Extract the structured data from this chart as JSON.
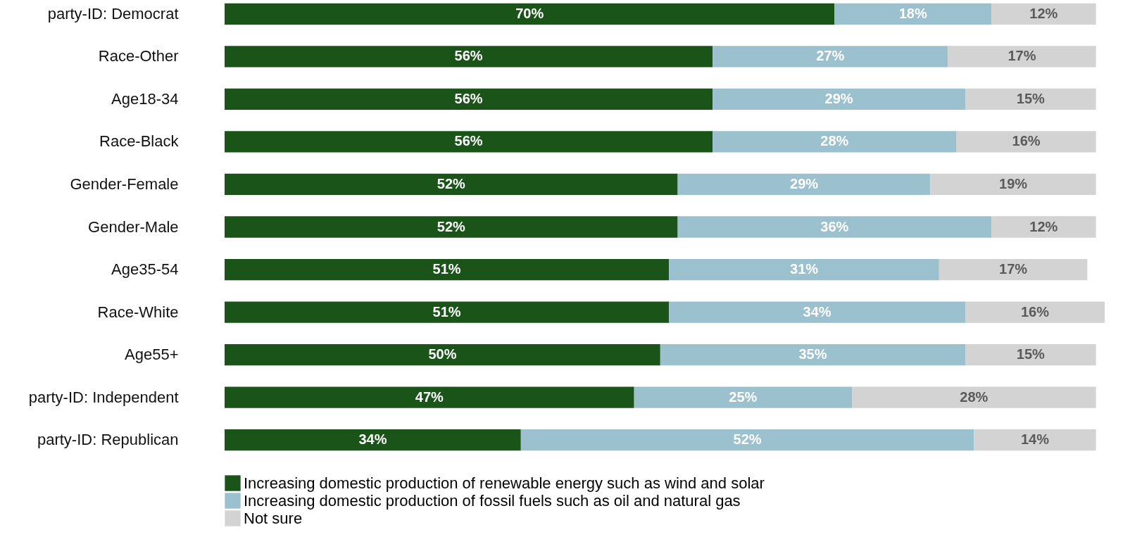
{
  "chart_data": {
    "type": "bar",
    "orientation": "horizontal",
    "stacked": true,
    "legend": "bottom",
    "categories": [
      "party-ID: Democrat",
      "Race-Other",
      "Age18-34",
      "Race-Black",
      "Gender-Female",
      "Gender-Male",
      "Age35-54",
      "Race-White",
      "Age55+",
      "party-ID: Independent",
      "party-ID: Republican"
    ],
    "series": [
      {
        "name": "Increasing domestic production of renewable energy such as wind and solar",
        "color": "#1a5418",
        "values": [
          70,
          56,
          56,
          56,
          52,
          52,
          51,
          51,
          50,
          47,
          34
        ],
        "value_labels": [
          "70%",
          "56%",
          "56%",
          "56%",
          "52%",
          "52%",
          "51%",
          "51%",
          "50%",
          "47%",
          "34%"
        ]
      },
      {
        "name": "Increasing domestic production of fossil fuels such as oil and natural gas",
        "color": "#9bc1cf",
        "values": [
          18,
          27,
          29,
          28,
          29,
          36,
          31,
          34,
          35,
          25,
          52
        ],
        "value_labels": [
          "18%",
          "27%",
          "29%",
          "28%",
          "29%",
          "36%",
          "31%",
          "34%",
          "35%",
          "25%",
          "52%"
        ]
      },
      {
        "name": "Not sure",
        "color": "#d3d3d3",
        "values": [
          12,
          17,
          15,
          16,
          19,
          12,
          17,
          16,
          15,
          28,
          14
        ],
        "value_labels": [
          "12%",
          "17%",
          "15%",
          "16%",
          "19%",
          "12%",
          "17%",
          "16%",
          "15%",
          "28%",
          "14%"
        ]
      }
    ]
  }
}
